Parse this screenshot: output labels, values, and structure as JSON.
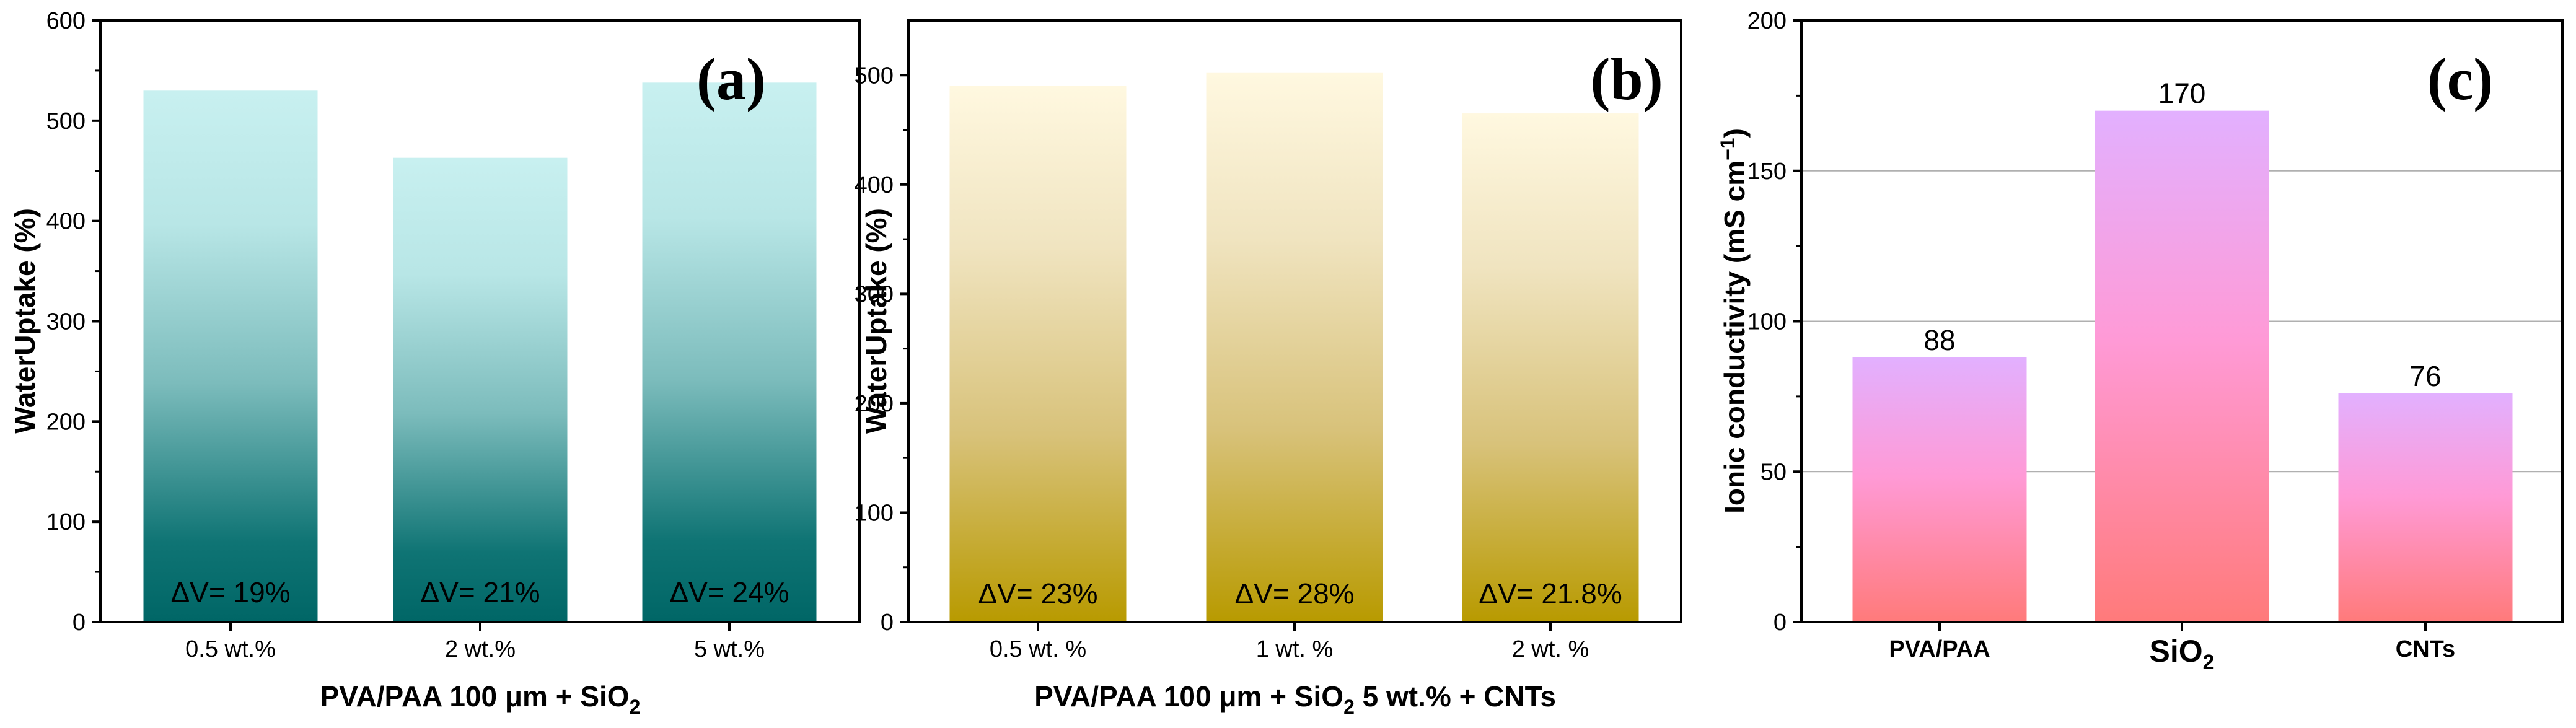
{
  "chart_data": [
    {
      "type": "bar",
      "panel_label": "(a)",
      "categories": [
        "0.5 wt.%",
        "2 wt.%",
        "5 wt.%"
      ],
      "values": [
        530,
        463,
        538
      ],
      "annotations": [
        "ΔV= 19%",
        "ΔV= 21%",
        "ΔV= 24%"
      ],
      "ylabel": "WaterUptake (%)",
      "xlabel": "PVA/PAA 100 μm + SiO",
      "xlabel_sub": "2",
      "ylim": [
        0,
        600
      ],
      "yticks": [
        "0",
        "100",
        "200",
        "300",
        "400",
        "500",
        "600"
      ],
      "colors": {
        "top": "#c8f0f0",
        "bottom": "#006666"
      }
    },
    {
      "type": "bar",
      "panel_label": "(b)",
      "categories": [
        "0.5 wt. %",
        "1 wt. %",
        "2 wt. %"
      ],
      "values": [
        490,
        502,
        465
      ],
      "annotations": [
        "ΔV= 23%",
        "ΔV= 28%",
        "ΔV= 21.8%"
      ],
      "ylabel": "WaterUptake (%)",
      "xlabel": "PVA/PAA 100 μm + SiO",
      "xlabel_sub": "2",
      "xlabel_tail": " 5 wt.%  + CNTs",
      "ylim": [
        0,
        550
      ],
      "yticks": [
        "0",
        "100",
        "200",
        "300",
        "400",
        "500"
      ],
      "colors": {
        "top": "#fff8e0",
        "bottom": "#b89a00"
      }
    },
    {
      "type": "bar",
      "panel_label": "(c)",
      "categories": [
        "PVA/PAA",
        "SiO",
        "CNTs"
      ],
      "category_sub": [
        "",
        "2",
        ""
      ],
      "values": [
        88,
        170,
        76
      ],
      "value_labels": [
        "88",
        "170",
        "76"
      ],
      "ylabel": "Ionic conductivity (mS cm",
      "ylabel_sup": "−1",
      "ylabel_tail": ")",
      "ylim": [
        0,
        200
      ],
      "yticks": [
        "0",
        "50",
        "100",
        "150",
        "200"
      ],
      "grid": true,
      "colors": {
        "top": "#e2b0ff",
        "mid": "#ff9ad6",
        "bottom": "#ff7a7a"
      }
    }
  ]
}
